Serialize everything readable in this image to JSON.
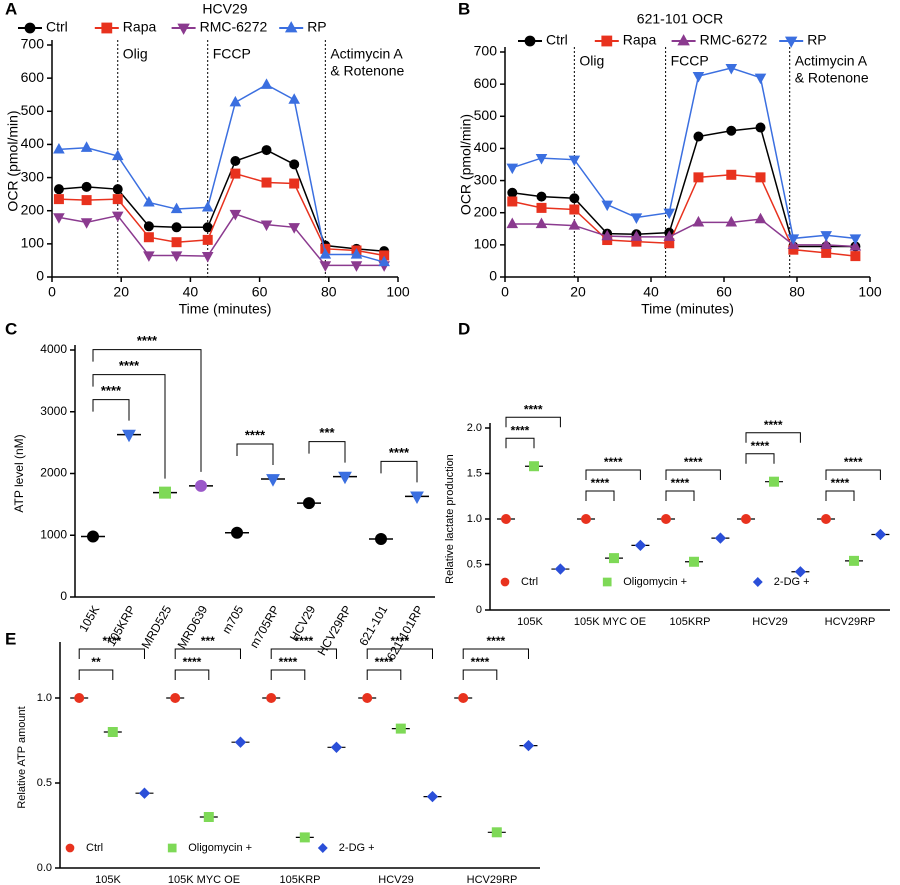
{
  "chart_data": [
    {
      "type": "line",
      "panel": "A",
      "title": "HCV29",
      "xlabel": "Time (minutes)",
      "ylabel": "OCR (pmol/min)",
      "x": [
        2,
        10,
        19,
        28,
        36,
        45,
        53,
        62,
        70,
        79,
        88,
        96
      ],
      "xlim": [
        0,
        100
      ],
      "xticks": [
        0,
        20,
        40,
        60,
        80,
        100
      ],
      "ylim": [
        0,
        700
      ],
      "yticks": [
        0,
        100,
        200,
        300,
        400,
        500,
        600,
        700
      ],
      "annotations": [
        {
          "x": 19,
          "text": [
            "Olig"
          ]
        },
        {
          "x": 45,
          "text": [
            "FCCP"
          ]
        },
        {
          "x": 79,
          "text": [
            "Actimycin A",
            "& Rotenone"
          ]
        }
      ],
      "series": [
        {
          "name": "Ctrl",
          "color": "#000000",
          "marker": "circle",
          "values": [
            265,
            272,
            265,
            153,
            150,
            150,
            350,
            383,
            340,
            95,
            85,
            78
          ]
        },
        {
          "name": "Rapa",
          "color": "#e8321e",
          "marker": "square",
          "values": [
            235,
            232,
            235,
            120,
            105,
            112,
            312,
            285,
            282,
            85,
            80,
            65
          ]
        },
        {
          "name": "RMC-6272",
          "color": "#8b3a8f",
          "marker": "tri-down",
          "values": [
            180,
            165,
            185,
            65,
            65,
            63,
            190,
            158,
            150,
            35,
            35,
            35
          ]
        },
        {
          "name": "RP",
          "color": "#3b6fe0",
          "marker": "tri-up",
          "values": [
            385,
            390,
            365,
            225,
            205,
            210,
            527,
            580,
            535,
            68,
            68,
            45
          ]
        }
      ]
    },
    {
      "type": "line",
      "panel": "B",
      "title": "621-101 OCR",
      "xlabel": "Time (minutes)",
      "ylabel": "OCR (pmol/min)",
      "x": [
        2,
        10,
        19,
        28,
        36,
        45,
        53,
        62,
        70,
        79,
        88,
        96
      ],
      "xlim": [
        0,
        100
      ],
      "xticks": [
        0,
        20,
        40,
        60,
        80,
        100
      ],
      "ylim": [
        0,
        700
      ],
      "yticks": [
        0,
        100,
        200,
        300,
        400,
        500,
        600,
        700
      ],
      "annotations": [
        {
          "x": 19,
          "text": [
            "Olig"
          ]
        },
        {
          "x": 44,
          "text": [
            "FCCP"
          ]
        },
        {
          "x": 78,
          "text": [
            "Actimycin A",
            "& Rotenone"
          ]
        }
      ],
      "series": [
        {
          "name": "Ctrl",
          "color": "#000000",
          "marker": "circle",
          "values": [
            262,
            250,
            245,
            135,
            133,
            138,
            437,
            455,
            465,
            95,
            95,
            95
          ]
        },
        {
          "name": "Rapa",
          "color": "#e8321e",
          "marker": "square",
          "values": [
            235,
            215,
            210,
            115,
            110,
            105,
            310,
            318,
            310,
            85,
            75,
            65
          ]
        },
        {
          "name": "RMC-6272",
          "color": "#8b3a8f",
          "marker": "tri-up",
          "values": [
            165,
            165,
            160,
            127,
            125,
            125,
            170,
            170,
            180,
            100,
            100,
            95
          ]
        },
        {
          "name": "RP",
          "color": "#3b6fe0",
          "marker": "tri-down",
          "values": [
            340,
            370,
            365,
            225,
            185,
            200,
            625,
            650,
            620,
            120,
            130,
            120
          ]
        }
      ]
    },
    {
      "type": "dot",
      "panel": "C",
      "ylabel": "ATP level (nM)",
      "categories": [
        "105K",
        "105KRP",
        "MRD525",
        "MRD639",
        "m705",
        "m705RP",
        "HCV29",
        "HCV29RP",
        "621-101",
        "621-101RP"
      ],
      "values": [
        980,
        2630,
        1690,
        1800,
        1040,
        1910,
        1520,
        1950,
        940,
        1630
      ],
      "colors": [
        "#000000",
        "#3b6fe0",
        "#7ed957",
        "#9b59c9",
        "#000000",
        "#3b6fe0",
        "#000000",
        "#3b6fe0",
        "#000000",
        "#3b6fe0"
      ],
      "markers": [
        "circle",
        "tri-down",
        "square",
        "circle",
        "circle",
        "tri-down",
        "circle",
        "tri-down",
        "circle",
        "tri-down"
      ],
      "ylim": [
        0,
        4000
      ],
      "yticks": [
        0,
        1000,
        2000,
        3000,
        4000
      ],
      "brackets": [
        {
          "from": 0,
          "to": 1,
          "label": "****"
        },
        {
          "from": 0,
          "to": 2,
          "label": "****"
        },
        {
          "from": 0,
          "to": 3,
          "label": "****"
        },
        {
          "from": 4,
          "to": 5,
          "label": "****"
        },
        {
          "from": 6,
          "to": 7,
          "label": "***"
        },
        {
          "from": 8,
          "to": 9,
          "label": "****"
        }
      ]
    },
    {
      "type": "dot",
      "panel": "D",
      "ylabel": "Relative lactate production",
      "categories": [
        "105K",
        "105K MYC OE",
        "105KRP",
        "HCV29",
        "HCV29RP"
      ],
      "ylim": [
        0,
        2
      ],
      "yticks": [
        0,
        0.5,
        {
          "value": 1,
          "label": "1.0"
        },
        1.5,
        {
          "value": 2,
          "label": "2.0"
        }
      ],
      "series": [
        {
          "name": "Ctrl",
          "color": "#e8321e",
          "marker": "circle",
          "values": [
            1,
            1,
            1,
            1,
            1
          ]
        },
        {
          "name": "Oligomycin +",
          "color": "#7ed957",
          "marker": "square",
          "values": [
            1.58,
            0.57,
            0.53,
            1.41,
            0.54
          ]
        },
        {
          "name": "2-DG +",
          "color": "#2b4fd8",
          "marker": "diamond",
          "values": [
            0.45,
            0.71,
            0.79,
            0.42,
            0.83
          ]
        }
      ],
      "brackets": [
        {
          "category": 0,
          "from": 0,
          "to": 1,
          "label": "****"
        },
        {
          "category": 0,
          "from": 0,
          "to": 2,
          "label": "****"
        },
        {
          "category": 1,
          "from": 0,
          "to": 1,
          "label": "****"
        },
        {
          "category": 1,
          "from": 0,
          "to": 2,
          "label": "****"
        },
        {
          "category": 2,
          "from": 0,
          "to": 1,
          "label": "****"
        },
        {
          "category": 2,
          "from": 0,
          "to": 2,
          "label": "****"
        },
        {
          "category": 3,
          "from": 0,
          "to": 1,
          "label": "****"
        },
        {
          "category": 3,
          "from": 0,
          "to": 2,
          "label": "****"
        },
        {
          "category": 4,
          "from": 0,
          "to": 1,
          "label": "****"
        },
        {
          "category": 4,
          "from": 0,
          "to": 2,
          "label": "****"
        }
      ]
    },
    {
      "type": "dot",
      "panel": "E",
      "ylabel": "Relative ATP amount",
      "categories": [
        "105K",
        "105K MYC OE",
        "105KRP",
        "HCV29",
        "HCV29RP"
      ],
      "ylim": [
        0,
        1.3
      ],
      "yticks": [
        {
          "value": 0,
          "label": "0.0"
        },
        0.5,
        {
          "value": 1,
          "label": "1.0"
        }
      ],
      "series": [
        {
          "name": "Ctrl",
          "color": "#e8321e",
          "marker": "circle",
          "values": [
            1,
            1,
            1,
            1,
            1
          ]
        },
        {
          "name": "Oligomycin +",
          "color": "#7ed957",
          "marker": "square",
          "values": [
            0.8,
            0.3,
            0.18,
            0.82,
            0.21
          ]
        },
        {
          "name": "2-DG +",
          "color": "#2b4fd8",
          "marker": "diamond",
          "values": [
            0.44,
            0.74,
            0.71,
            0.42,
            0.72
          ]
        }
      ],
      "brackets": [
        {
          "category": 0,
          "from": 0,
          "to": 1,
          "label": "**"
        },
        {
          "category": 0,
          "from": 0,
          "to": 2,
          "label": "****"
        },
        {
          "category": 1,
          "from": 0,
          "to": 1,
          "label": "****"
        },
        {
          "category": 1,
          "from": 0,
          "to": 2,
          "label": "***"
        },
        {
          "category": 2,
          "from": 0,
          "to": 1,
          "label": "****"
        },
        {
          "category": 2,
          "from": 0,
          "to": 2,
          "label": "****"
        },
        {
          "category": 3,
          "from": 0,
          "to": 1,
          "label": "****"
        },
        {
          "category": 3,
          "from": 0,
          "to": 2,
          "label": "****"
        },
        {
          "category": 4,
          "from": 0,
          "to": 1,
          "label": "****"
        },
        {
          "category": 4,
          "from": 0,
          "to": 2,
          "label": "****"
        }
      ]
    }
  ]
}
